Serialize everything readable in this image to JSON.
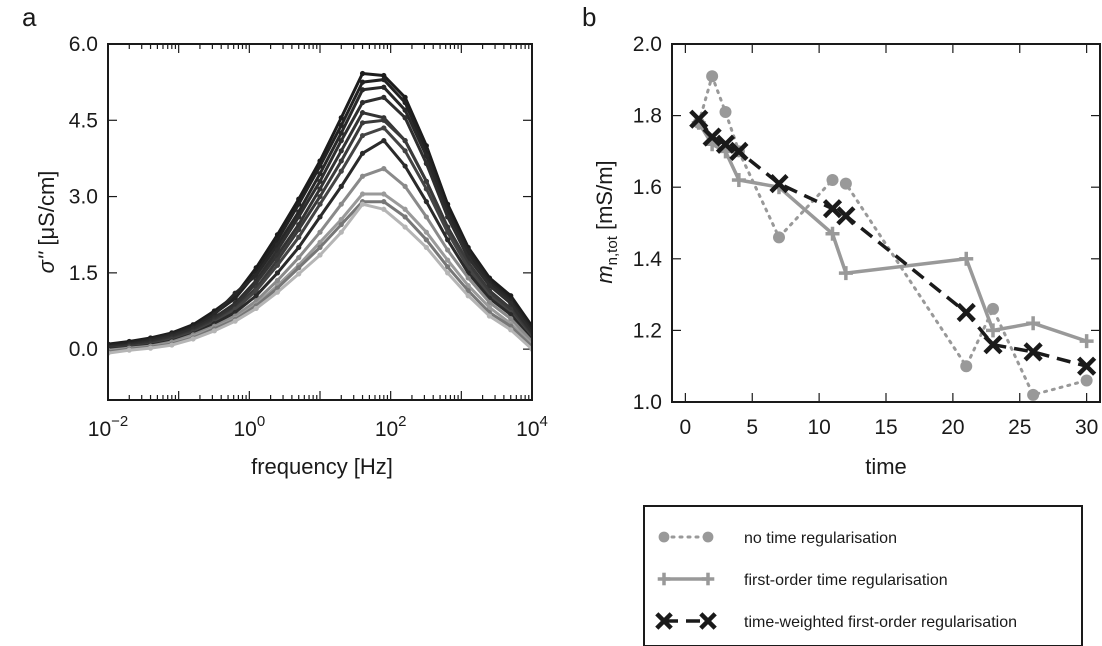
{
  "chart_data": [
    {
      "panel_label": "a",
      "type": "line",
      "xlabel": "frequency [Hz]",
      "ylabel_symbol": "σ''",
      "ylabel_unit": "[μS/cm]",
      "x_scale": "log",
      "xlim": [
        0.01,
        10000
      ],
      "ylim": [
        -1.0,
        6.0
      ],
      "x_ticks": [
        {
          "value": 0.01,
          "base": "10",
          "exp": "−2"
        },
        {
          "value": 1,
          "base": "10",
          "exp": "0"
        },
        {
          "value": 100,
          "base": "10",
          "exp": "2"
        },
        {
          "value": 10000,
          "base": "10",
          "exp": "4"
        }
      ],
      "y_ticks": [
        "0.0",
        "1.5",
        "3.0",
        "4.5",
        "6.0"
      ],
      "x": [
        0.01,
        0.02,
        0.04,
        0.08,
        0.16,
        0.32,
        0.63,
        1.25,
        2.5,
        5,
        10,
        20,
        40,
        80,
        160,
        320,
        640,
        1250,
        2500,
        5000,
        10000
      ],
      "series": [
        {
          "color": "#1c1c1c",
          "values": [
            0.1,
            0.15,
            0.22,
            0.32,
            0.48,
            0.75,
            1.05,
            1.6,
            2.25,
            2.95,
            3.7,
            4.55,
            5.42,
            5.38,
            4.95,
            4.0,
            2.85,
            2.0,
            1.4,
            1.05,
            0.45
          ]
        },
        {
          "color": "#222222",
          "values": [
            0.08,
            0.13,
            0.2,
            0.3,
            0.45,
            0.7,
            1.0,
            1.5,
            2.15,
            2.85,
            3.6,
            4.4,
            5.25,
            5.3,
            4.85,
            3.9,
            2.75,
            1.95,
            1.35,
            0.98,
            0.4
          ]
        },
        {
          "color": "#282828",
          "values": [
            0.05,
            0.1,
            0.18,
            0.28,
            0.42,
            0.68,
            1.1,
            1.45,
            2.05,
            2.7,
            3.45,
            4.25,
            5.1,
            5.15,
            4.7,
            3.8,
            2.7,
            1.9,
            1.3,
            0.95,
            0.35
          ]
        },
        {
          "color": "#2e2e2e",
          "values": [
            0.05,
            0.08,
            0.15,
            0.25,
            0.4,
            0.62,
            0.9,
            1.35,
            1.95,
            2.6,
            3.3,
            4.1,
            4.85,
            4.95,
            4.55,
            3.65,
            2.6,
            1.8,
            1.25,
            0.9,
            0.3
          ]
        },
        {
          "color": "#333333",
          "values": [
            0.02,
            0.06,
            0.12,
            0.22,
            0.36,
            0.58,
            0.85,
            1.3,
            1.85,
            2.45,
            3.15,
            3.9,
            4.65,
            4.55,
            4.1,
            3.3,
            2.4,
            1.7,
            1.15,
            0.8,
            0.25
          ]
        },
        {
          "color": "#3a3a3a",
          "values": [
            0.0,
            0.05,
            0.1,
            0.2,
            0.34,
            0.55,
            0.8,
            1.2,
            1.75,
            2.35,
            3.0,
            3.7,
            4.45,
            4.5,
            4.1,
            3.3,
            2.4,
            1.68,
            1.12,
            0.78,
            0.22
          ]
        },
        {
          "color": "#444444",
          "values": [
            0.0,
            0.04,
            0.09,
            0.18,
            0.32,
            0.52,
            0.78,
            1.15,
            1.65,
            2.2,
            2.85,
            3.5,
            4.2,
            4.35,
            3.9,
            3.15,
            2.3,
            1.6,
            1.05,
            0.72,
            0.2
          ]
        },
        {
          "color": "#2a2a2a",
          "values": [
            0.0,
            0.03,
            0.08,
            0.16,
            0.3,
            0.5,
            0.72,
            1.05,
            1.5,
            2.0,
            2.6,
            3.2,
            3.85,
            4.1,
            3.6,
            2.9,
            2.15,
            1.5,
            1.0,
            0.68,
            0.18
          ]
        },
        {
          "color": "#8a8a8a",
          "values": [
            -0.02,
            0.02,
            0.06,
            0.14,
            0.28,
            0.45,
            0.65,
            0.95,
            1.35,
            1.8,
            2.3,
            2.85,
            3.4,
            3.55,
            3.2,
            2.6,
            1.95,
            1.4,
            0.92,
            0.6,
            0.15
          ]
        },
        {
          "color": "#9a9a9a",
          "values": [
            -0.03,
            0.01,
            0.05,
            0.12,
            0.25,
            0.42,
            0.6,
            0.88,
            1.25,
            1.65,
            2.1,
            2.55,
            3.05,
            3.05,
            2.75,
            2.3,
            1.75,
            1.25,
            0.82,
            0.5,
            0.1
          ]
        },
        {
          "color": "#777777",
          "values": [
            -0.05,
            0.0,
            0.04,
            0.1,
            0.22,
            0.4,
            0.58,
            0.85,
            1.2,
            1.6,
            2.0,
            2.45,
            2.9,
            2.9,
            2.6,
            2.15,
            1.62,
            1.15,
            0.72,
            0.45,
            0.05
          ]
        },
        {
          "color": "#b5b5b5",
          "values": [
            -0.08,
            -0.02,
            0.02,
            0.08,
            0.2,
            0.36,
            0.55,
            0.8,
            1.12,
            1.48,
            1.85,
            2.3,
            2.85,
            2.75,
            2.4,
            2.0,
            1.5,
            1.05,
            0.65,
            0.38,
            0.0
          ]
        }
      ]
    },
    {
      "panel_label": "b",
      "type": "line",
      "xlabel": "time",
      "ylabel_symbol": "m",
      "ylabel_sub": "n,tot",
      "ylabel_unit": "[mS/m]",
      "xlim": [
        -1,
        31
      ],
      "ylim": [
        1.0,
        2.0
      ],
      "x_ticks": [
        "0",
        "5",
        "10",
        "15",
        "20",
        "25",
        "30"
      ],
      "y_ticks": [
        "1.0",
        "1.2",
        "1.4",
        "1.6",
        "1.8",
        "2.0"
      ],
      "series": [
        {
          "name": "no time regularisation",
          "style": "dotted-circle",
          "color": "#999999",
          "x": [
            1,
            2,
            3,
            4,
            7,
            11,
            12,
            21,
            23,
            26,
            30
          ],
          "y": [
            1.78,
            1.91,
            1.81,
            1.7,
            1.46,
            1.62,
            1.61,
            1.1,
            1.26,
            1.02,
            1.06
          ]
        },
        {
          "name": "first-order time regularisation",
          "style": "solid-plus",
          "color": "#999999",
          "x": [
            1,
            2,
            3,
            4,
            7,
            11,
            12,
            21,
            23,
            26,
            30
          ],
          "y": [
            1.78,
            1.72,
            1.7,
            1.62,
            1.6,
            1.47,
            1.36,
            1.4,
            1.2,
            1.22,
            1.17
          ]
        },
        {
          "name": "time-weighted first-order regularisation",
          "style": "dashed-x",
          "color": "#1a1a1a",
          "x": [
            1,
            2,
            3,
            4,
            7,
            11,
            12,
            21,
            23,
            26,
            30
          ],
          "y": [
            1.79,
            1.74,
            1.72,
            1.7,
            1.61,
            1.54,
            1.52,
            1.25,
            1.16,
            1.14,
            1.1
          ]
        }
      ]
    }
  ]
}
